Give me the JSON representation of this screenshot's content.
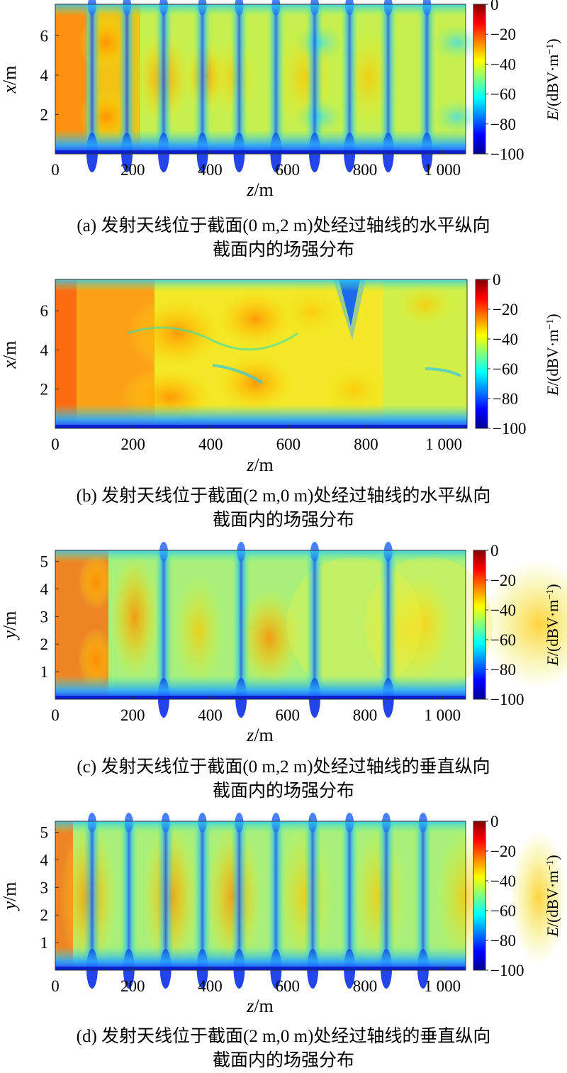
{
  "figure": {
    "panels": [
      {
        "id": "a",
        "caption": [
          "(a) 发射天线位于截面(0 m,2 m)处经过轴线的水平纵向",
          "截面内的场强分布"
        ],
        "ylabel_var": "x",
        "ylabel_unit": "/m",
        "xlabel_var": "z",
        "xlabel_unit": "/m",
        "colorbar_label_var": "E",
        "colorbar_label_unit": "/(dBV·m",
        "colorbar_label_sup": "−1",
        "colorbar_label_close": ")"
      },
      {
        "id": "b",
        "caption": [
          "(b) 发射天线位于截面(2 m,0 m)处经过轴线的水平纵向",
          "截面内的场强分布"
        ],
        "ylabel_var": "x",
        "ylabel_unit": "/m",
        "xlabel_var": "z",
        "xlabel_unit": "/m",
        "colorbar_label_var": "E",
        "colorbar_label_unit": "/(dBV·m",
        "colorbar_label_sup": "−1",
        "colorbar_label_close": ")"
      },
      {
        "id": "c",
        "caption": [
          "(c) 发射天线位于截面(0 m,2 m)处经过轴线的垂直纵向",
          "截面内的场强分布"
        ],
        "ylabel_var": "y",
        "ylabel_unit": "/m",
        "xlabel_var": "z",
        "xlabel_unit": "/m",
        "colorbar_label_var": "E",
        "colorbar_label_unit": "/(dBV·m",
        "colorbar_label_sup": "−1",
        "colorbar_label_close": ")"
      },
      {
        "id": "d",
        "caption": [
          "(d) 发射天线位于截面(2 m,0 m)处经过轴线的垂直纵向",
          "截面内的场强分布"
        ],
        "ylabel_var": "y",
        "ylabel_unit": "/m",
        "xlabel_var": "z",
        "xlabel_unit": "/m",
        "colorbar_label_var": "E",
        "colorbar_label_unit": "/(dBV·m",
        "colorbar_label_sup": "−1",
        "colorbar_label_close": ")"
      }
    ]
  },
  "chart_data": [
    {
      "type": "heatmap",
      "xlabel": "z/m",
      "ylabel": "x/m",
      "colorbar_label": "E/(dBV·m⁻¹)",
      "xlim": [
        0,
        1060
      ],
      "ylim": [
        0,
        7.6
      ],
      "x_ticks": [
        0,
        200,
        400,
        600,
        800,
        1000
      ],
      "x_tick_labels": [
        "0",
        "200",
        "400",
        "600",
        "800",
        "1 000"
      ],
      "y_ticks": [
        2,
        4,
        6
      ],
      "y_tick_labels": [
        "2",
        "4",
        "6"
      ],
      "clim": [
        -100,
        0
      ],
      "colorbar_ticks": [
        0,
        -20,
        -40,
        -60,
        -80,
        -100
      ],
      "colorbar_tick_labels": [
        "0",
        "−20",
        "−40",
        "−60",
        "−80",
        "−100"
      ],
      "colormap": "jet",
      "null_bands_z": [
        95,
        185,
        280,
        380,
        475,
        570,
        670,
        760,
        860,
        960
      ]
    },
    {
      "type": "heatmap",
      "xlabel": "z/m",
      "ylabel": "x/m",
      "colorbar_label": "E/(dBV·m⁻¹)",
      "xlim": [
        0,
        1060
      ],
      "ylim": [
        0,
        7.6
      ],
      "x_ticks": [
        0,
        200,
        400,
        600,
        800,
        1000
      ],
      "x_tick_labels": [
        "0",
        "200",
        "400",
        "600",
        "800",
        "1 000"
      ],
      "y_ticks": [
        2,
        4,
        6
      ],
      "y_tick_labels": [
        "2",
        "4",
        "6"
      ],
      "clim": [
        -100,
        0
      ],
      "colorbar_ticks": [
        0,
        -20,
        -40,
        -60,
        -80,
        -100
      ],
      "colorbar_tick_labels": [
        "0",
        "−20",
        "−40",
        "−60",
        "−80",
        "−100"
      ],
      "colormap": "jet"
    },
    {
      "type": "heatmap",
      "xlabel": "z/m",
      "ylabel": "y/m",
      "colorbar_label": "E/(dBV·m⁻¹)",
      "xlim": [
        0,
        1060
      ],
      "ylim": [
        0,
        5.4
      ],
      "x_ticks": [
        0,
        200,
        400,
        600,
        800,
        1000
      ],
      "x_tick_labels": [
        "0",
        "200",
        "400",
        "600",
        "800",
        "1 000"
      ],
      "y_ticks": [
        1,
        2,
        3,
        4,
        5
      ],
      "y_tick_labels": [
        "1",
        "2",
        "3",
        "4",
        "5"
      ],
      "clim": [
        -100,
        0
      ],
      "colorbar_ticks": [
        0,
        -20,
        -40,
        -60,
        -80,
        -100
      ],
      "colorbar_tick_labels": [
        "0",
        "−20",
        "−40",
        "−60",
        "−80",
        "−100"
      ],
      "colormap": "jet",
      "null_bands_z": [
        280,
        480,
        670,
        860
      ]
    },
    {
      "type": "heatmap",
      "xlabel": "z/m",
      "ylabel": "y/m",
      "colorbar_label": "E/(dBV·m⁻¹)",
      "xlim": [
        0,
        1060
      ],
      "ylim": [
        0,
        5.4
      ],
      "x_ticks": [
        0,
        200,
        400,
        600,
        800,
        1000
      ],
      "x_tick_labels": [
        "0",
        "200",
        "400",
        "600",
        "800",
        "1 000"
      ],
      "y_ticks": [
        1,
        2,
        3,
        4,
        5
      ],
      "y_tick_labels": [
        "1",
        "2",
        "3",
        "4",
        "5"
      ],
      "clim": [
        -100,
        0
      ],
      "colorbar_ticks": [
        0,
        -20,
        -40,
        -60,
        -80,
        -100
      ],
      "colorbar_tick_labels": [
        "0",
        "−20",
        "−40",
        "−60",
        "−80",
        "−100"
      ],
      "colormap": "jet",
      "null_bands_z": [
        95,
        190,
        285,
        380,
        475,
        570,
        665,
        760,
        855,
        950
      ]
    }
  ]
}
